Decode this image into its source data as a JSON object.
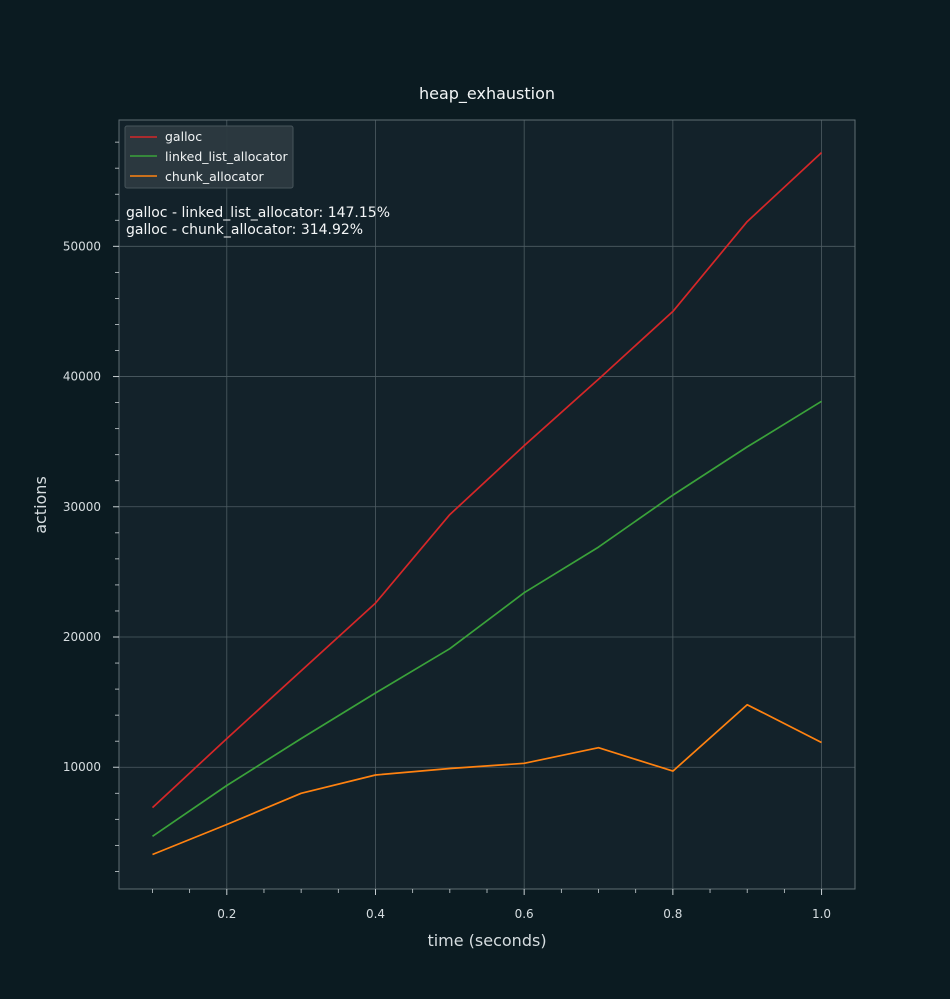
{
  "chart_data": {
    "type": "line",
    "title": "heap_exhaustion",
    "xlabel": "time (seconds)",
    "ylabel": "actions",
    "xlim": [
      0.055,
      1.045
    ],
    "ylim": [
      650,
      59700
    ],
    "grid": true,
    "legend_position": "top-left",
    "x": [
      0.1,
      0.2,
      0.3,
      0.4,
      0.5,
      0.6,
      0.7,
      0.8,
      0.9,
      1.0
    ],
    "x_ticks": [
      0.2,
      0.4,
      0.6,
      0.8,
      1.0
    ],
    "x_tick_labels": [
      "0.2",
      "0.4",
      "0.6",
      "0.8",
      "1.0"
    ],
    "x_minor_ticks": [
      0.1,
      0.15,
      0.25,
      0.3,
      0.35,
      0.45,
      0.5,
      0.55,
      0.65,
      0.7,
      0.75,
      0.85,
      0.9,
      0.95
    ],
    "y_ticks": [
      10000,
      20000,
      30000,
      40000,
      50000
    ],
    "y_tick_labels": [
      "10000",
      "20000",
      "30000",
      "40000",
      "50000"
    ],
    "y_minor_step": 2000,
    "series": [
      {
        "name": "galloc",
        "color": "#d62728",
        "values": [
          6900,
          12200,
          17400,
          22600,
          29400,
          34700,
          39800,
          45000,
          51900,
          57200
        ]
      },
      {
        "name": "linked_list_allocator",
        "color": "#3aa23a",
        "values": [
          4700,
          8600,
          12200,
          15700,
          19100,
          23400,
          26900,
          30900,
          34600,
          38100
        ]
      },
      {
        "name": "chunk_allocator",
        "color": "#ff8210",
        "values": [
          3300,
          5600,
          8000,
          9400,
          9900,
          10300,
          11500,
          9700,
          14800,
          11900
        ]
      }
    ],
    "annotations": [
      "galloc - linked_list_allocator: 147.15%",
      "galloc - chunk_allocator: 314.92%"
    ]
  },
  "colors": {
    "figure_background": "#0b1b21",
    "axes_background": "#13222a",
    "grid": "#4e5d63",
    "spine": "#5f6d73"
  }
}
